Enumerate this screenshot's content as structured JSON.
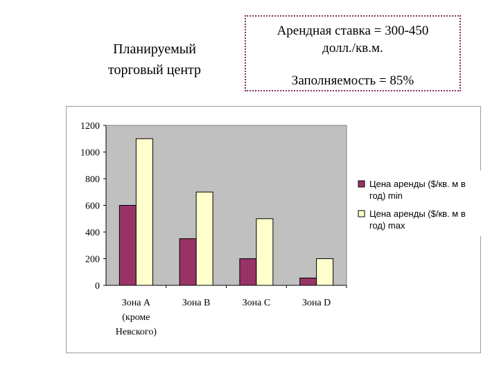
{
  "heading": {
    "line1": "Планируемый",
    "line2": "торговый центр"
  },
  "info": {
    "rate_line1": "Арендная ставка = 300-450",
    "rate_line2": "долл./кв.м.",
    "occupancy": "Заполняемость = 85%"
  },
  "chart_data": {
    "type": "bar",
    "categories": [
      [
        "Зона А",
        "(кроме",
        "Невского)"
      ],
      [
        "Зона В"
      ],
      [
        "Зона С"
      ],
      [
        "Зона D"
      ]
    ],
    "series": [
      {
        "name": [
          "Цена аренды ($/кв. м в",
          "год) min"
        ],
        "values": [
          600,
          350,
          200,
          55
        ],
        "color": "#993366"
      },
      {
        "name": [
          "Цена аренды ($/кв. м в",
          "год) max"
        ],
        "values": [
          1100,
          700,
          500,
          200
        ],
        "color": "#ffffcc"
      }
    ],
    "ylim": [
      0,
      1200
    ],
    "yticks": [
      0,
      200,
      400,
      600,
      800,
      1000,
      1200
    ],
    "plot_background": "#c0c0c0",
    "grid": false,
    "legend_position": "right"
  }
}
